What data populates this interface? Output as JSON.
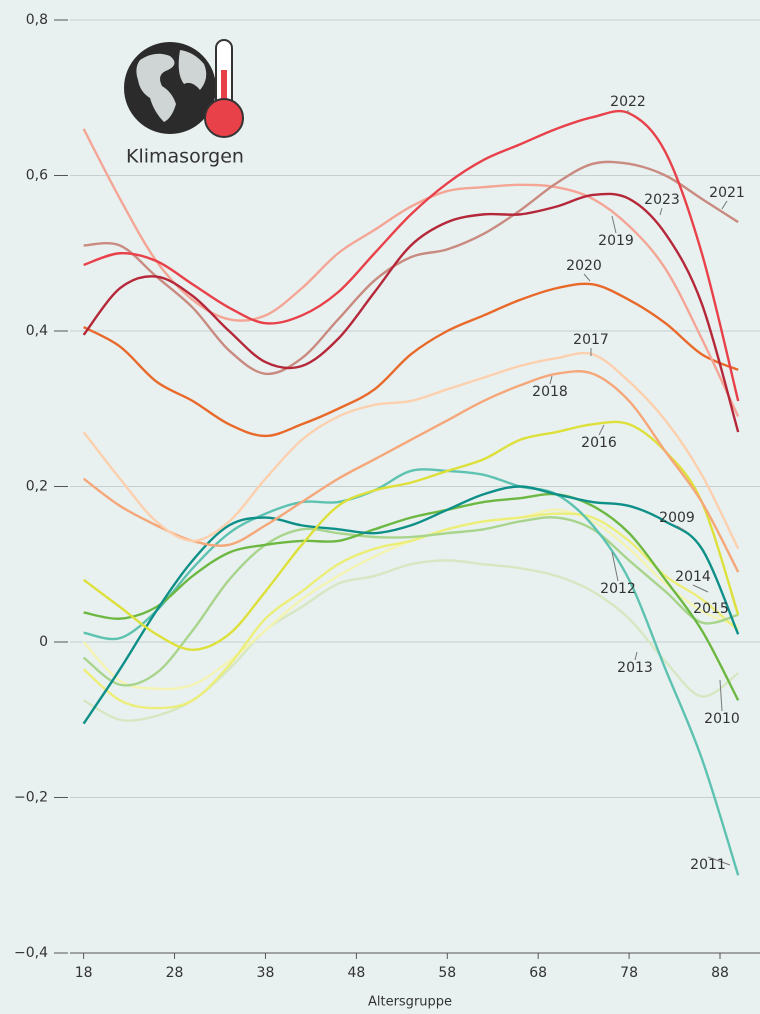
{
  "chart_data": {
    "type": "line",
    "title": "Klimasorgen",
    "x_label": "Altersgruppe",
    "x": [
      18,
      22,
      26,
      30,
      34,
      38,
      42,
      46,
      50,
      54,
      58,
      62,
      66,
      70,
      74,
      78,
      82,
      86,
      90
    ],
    "xlim": [
      16.5,
      92.4
    ],
    "xticks": [
      18,
      28,
      38,
      48,
      58,
      68,
      78,
      88
    ],
    "ylim": [
      -0.4,
      0.8
    ],
    "yticks": [
      {
        "value": -0.4,
        "label": "−0,4"
      },
      {
        "value": -0.2,
        "label": "−0,2"
      },
      0,
      {
        "value": 0.2,
        "label": "0,2"
      },
      {
        "value": 0.4,
        "label": "0,4"
      },
      {
        "value": 0.6,
        "label": "0,6"
      },
      {
        "value": 0.8,
        "label": "0,8"
      }
    ],
    "grid": true,
    "series": [
      {
        "name": "2013",
        "color": "#d6e7c2",
        "values": [
          -0.075,
          -0.1,
          -0.095,
          -0.075,
          -0.035,
          0.015,
          0.045,
          0.075,
          0.085,
          0.1,
          0.105,
          0.1,
          0.095,
          0.085,
          0.065,
          0.03,
          -0.025,
          -0.07,
          -0.04
        ]
      },
      {
        "name": "2015",
        "color": "#f5f3b2",
        "values": [
          0.0,
          -0.05,
          -0.06,
          -0.055,
          -0.025,
          0.015,
          0.055,
          0.085,
          0.11,
          0.13,
          0.145,
          0.155,
          0.16,
          0.17,
          0.155,
          0.12,
          0.075,
          0.04,
          0.02
        ]
      },
      {
        "name": "2014",
        "color": "#ecee78",
        "values": [
          -0.035,
          -0.075,
          -0.085,
          -0.075,
          -0.03,
          0.03,
          0.065,
          0.1,
          0.12,
          0.13,
          0.145,
          0.155,
          0.16,
          0.165,
          0.16,
          0.13,
          0.085,
          0.055,
          0.015
        ]
      },
      {
        "name": "2012",
        "color": "#a8d48c",
        "values": [
          -0.02,
          -0.055,
          -0.04,
          0.015,
          0.08,
          0.125,
          0.145,
          0.14,
          0.135,
          0.135,
          0.14,
          0.145,
          0.155,
          0.16,
          0.145,
          0.105,
          0.065,
          0.025,
          0.035
        ]
      },
      {
        "name": "2011",
        "color": "#5ec2b1",
        "values": [
          0.012,
          0.005,
          0.04,
          0.095,
          0.14,
          0.165,
          0.18,
          0.18,
          0.195,
          0.22,
          0.22,
          0.215,
          0.2,
          0.19,
          0.15,
          0.08,
          -0.035,
          -0.15,
          -0.3
        ]
      },
      {
        "name": "2010",
        "color": "#6db842",
        "values": [
          0.038,
          0.03,
          0.045,
          0.085,
          0.115,
          0.125,
          0.13,
          0.13,
          0.145,
          0.16,
          0.17,
          0.18,
          0.185,
          0.19,
          0.175,
          0.14,
          0.08,
          0.015,
          -0.075
        ]
      },
      {
        "name": "2009",
        "color": "#0e8f88",
        "values": [
          -0.105,
          -0.035,
          0.04,
          0.105,
          0.15,
          0.16,
          0.15,
          0.145,
          0.14,
          0.15,
          0.17,
          0.19,
          0.2,
          0.19,
          0.18,
          0.175,
          0.155,
          0.12,
          0.01
        ]
      },
      {
        "name": "2016",
        "color": "#dde03a",
        "values": [
          0.08,
          0.045,
          0.01,
          -0.01,
          0.01,
          0.065,
          0.125,
          0.175,
          0.195,
          0.205,
          0.22,
          0.235,
          0.26,
          0.27,
          0.28,
          0.28,
          0.245,
          0.18,
          0.035
        ]
      },
      {
        "name": "2018",
        "color": "#f6a77a",
        "values": [
          0.21,
          0.175,
          0.15,
          0.13,
          0.125,
          0.15,
          0.18,
          0.21,
          0.235,
          0.26,
          0.285,
          0.31,
          0.33,
          0.345,
          0.345,
          0.31,
          0.245,
          0.18,
          0.09
        ]
      },
      {
        "name": "2017",
        "color": "#fcd0ae",
        "values": [
          0.27,
          0.21,
          0.155,
          0.13,
          0.155,
          0.21,
          0.26,
          0.29,
          0.305,
          0.31,
          0.325,
          0.34,
          0.355,
          0.365,
          0.37,
          0.335,
          0.285,
          0.215,
          0.12
        ]
      },
      {
        "name": "2020",
        "color": "#e8692a",
        "values": [
          0.405,
          0.38,
          0.335,
          0.31,
          0.28,
          0.265,
          0.28,
          0.3,
          0.325,
          0.37,
          0.4,
          0.42,
          0.44,
          0.455,
          0.46,
          0.44,
          0.41,
          0.37,
          0.35
        ]
      },
      {
        "name": "2019",
        "color": "#f4a595",
        "values": [
          0.66,
          0.57,
          0.49,
          0.44,
          0.415,
          0.42,
          0.455,
          0.5,
          0.53,
          0.56,
          0.58,
          0.585,
          0.588,
          0.585,
          0.57,
          0.535,
          0.48,
          0.39,
          0.29
        ]
      },
      {
        "name": "2021",
        "color": "#c98a80",
        "values": [
          0.51,
          0.51,
          0.47,
          0.43,
          0.375,
          0.345,
          0.365,
          0.415,
          0.465,
          0.495,
          0.505,
          0.525,
          0.555,
          0.59,
          0.615,
          0.615,
          0.6,
          0.57,
          0.54
        ]
      },
      {
        "name": "2023",
        "color": "#b5283a",
        "values": [
          0.395,
          0.455,
          0.47,
          0.445,
          0.4,
          0.36,
          0.355,
          0.39,
          0.45,
          0.51,
          0.54,
          0.55,
          0.55,
          0.56,
          0.575,
          0.57,
          0.525,
          0.435,
          0.27
        ]
      },
      {
        "name": "2022",
        "color": "#e8414a",
        "values": [
          0.485,
          0.5,
          0.49,
          0.46,
          0.43,
          0.41,
          0.42,
          0.45,
          0.5,
          0.55,
          0.59,
          0.62,
          0.64,
          0.66,
          0.675,
          0.68,
          0.63,
          0.5,
          0.31
        ]
      }
    ]
  }
}
